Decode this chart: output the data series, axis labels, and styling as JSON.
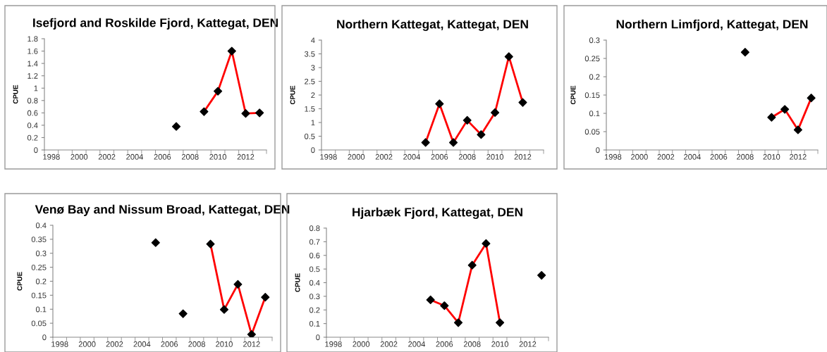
{
  "chart_data": [
    {
      "type": "line",
      "title": "Isefjord and Roskilde Fjord, Kattegat, DEN",
      "ylabel": "CPUE",
      "categories": [
        "1998",
        null,
        "2000",
        null,
        "2002",
        null,
        "2004",
        null,
        "2006",
        null,
        "2008",
        null,
        "2010",
        null,
        "2012",
        null
      ],
      "ylim": [
        0,
        1.8
      ],
      "yticks": [
        0,
        0.2,
        0.4,
        0.6,
        0.8,
        1,
        1.2,
        1.4,
        1.6,
        1.8
      ],
      "grid": false,
      "series": [
        {
          "color": "#ff0000",
          "marker": "none",
          "values": [
            null,
            null,
            null,
            null,
            null,
            null,
            null,
            null,
            null,
            null,
            null,
            0.62,
            0.95,
            1.6,
            0.59,
            0.6
          ]
        },
        {
          "type": "scatter",
          "color": "#000000",
          "marker": "diamond",
          "values": [
            null,
            null,
            null,
            null,
            null,
            null,
            null,
            null,
            null,
            0.38,
            null,
            0.62,
            0.95,
            1.6,
            0.59,
            0.6
          ]
        }
      ]
    },
    {
      "type": "line",
      "title": "Northern Kattegat, Kattegat, DEN",
      "ylabel": "CPUE",
      "categories": [
        "1998",
        null,
        "2000",
        null,
        "2002",
        null,
        "2004",
        null,
        "2006",
        null,
        "2008",
        null,
        "2010",
        null,
        "2012",
        null
      ],
      "ylim": [
        0,
        4
      ],
      "yticks": [
        0,
        0.5,
        1,
        1.5,
        2,
        2.5,
        3,
        3.5,
        4
      ],
      "grid": false,
      "series": [
        {
          "color": "#ff0000",
          "marker": "none",
          "values": [
            null,
            null,
            null,
            null,
            null,
            null,
            null,
            0.27,
            1.68,
            0.27,
            1.08,
            0.56,
            1.36,
            3.4,
            1.73,
            null
          ]
        },
        {
          "type": "scatter",
          "color": "#000000",
          "marker": "diamond",
          "values": [
            null,
            null,
            null,
            null,
            null,
            null,
            null,
            0.27,
            1.68,
            0.27,
            1.08,
            0.56,
            1.36,
            3.4,
            1.73,
            null
          ]
        }
      ]
    },
    {
      "type": "line",
      "title": "Northern Limfjord, Kattegat, DEN",
      "ylabel": "CPUE",
      "categories": [
        "1998",
        null,
        "2000",
        null,
        "2002",
        null,
        "2004",
        null,
        "2006",
        null,
        "2008",
        null,
        "2010",
        null,
        "2012",
        null
      ],
      "ylim": [
        0,
        0.3
      ],
      "yticks": [
        0,
        0.05,
        0.1,
        0.15,
        0.2,
        0.25,
        0.3
      ],
      "grid": false,
      "series": [
        {
          "color": "#ff0000",
          "marker": "none",
          "values": [
            null,
            null,
            null,
            null,
            null,
            null,
            null,
            null,
            null,
            null,
            null,
            null,
            0.089,
            0.111,
            0.055,
            0.142
          ]
        },
        {
          "type": "scatter",
          "color": "#000000",
          "marker": "diamond",
          "values": [
            null,
            null,
            null,
            null,
            null,
            null,
            null,
            null,
            null,
            null,
            0.267,
            null,
            0.089,
            0.111,
            0.055,
            0.142
          ]
        }
      ]
    },
    {
      "type": "line",
      "title": "Venø Bay and Nissum Broad, Kattegat, DEN",
      "ylabel": "CPUE",
      "categories": [
        "1998",
        null,
        "2000",
        null,
        "2002",
        null,
        "2004",
        null,
        "2006",
        null,
        "2008",
        null,
        "2010",
        null,
        "2012",
        null
      ],
      "ylim": [
        0,
        0.4
      ],
      "yticks": [
        0,
        0.05,
        0.1,
        0.15,
        0.2,
        0.25,
        0.3,
        0.35,
        0.4
      ],
      "grid": false,
      "series": [
        {
          "color": "#ff0000",
          "marker": "none",
          "values": [
            null,
            null,
            null,
            null,
            null,
            null,
            null,
            null,
            null,
            null,
            null,
            0.333,
            0.099,
            0.189,
            0.01,
            0.143
          ]
        },
        {
          "type": "scatter",
          "color": "#000000",
          "marker": "diamond",
          "values": [
            null,
            null,
            null,
            null,
            null,
            null,
            null,
            0.338,
            null,
            0.084,
            null,
            0.333,
            0.099,
            0.189,
            0.01,
            0.143
          ]
        }
      ]
    },
    {
      "type": "line",
      "title": "Hjarbæk Fjord, Kattegat, DEN",
      "ylabel": "CPUE",
      "categories": [
        "1998",
        null,
        "2000",
        null,
        "2002",
        null,
        "2004",
        null,
        "2006",
        null,
        "2008",
        null,
        "2010",
        null,
        "2012",
        null
      ],
      "ylim": [
        0,
        0.8
      ],
      "yticks": [
        0,
        0.1,
        0.2,
        0.3,
        0.4,
        0.5,
        0.6,
        0.7,
        0.8
      ],
      "grid": false,
      "series": [
        {
          "color": "#ff0000",
          "marker": "none",
          "values": [
            null,
            null,
            null,
            null,
            null,
            null,
            null,
            0.274,
            0.231,
            0.107,
            0.528,
            0.687,
            0.107,
            null,
            null,
            null
          ]
        },
        {
          "type": "scatter",
          "color": "#000000",
          "marker": "diamond",
          "values": [
            null,
            null,
            null,
            null,
            null,
            null,
            null,
            0.274,
            0.231,
            0.107,
            0.528,
            0.687,
            0.107,
            null,
            null,
            0.454
          ]
        }
      ]
    }
  ]
}
